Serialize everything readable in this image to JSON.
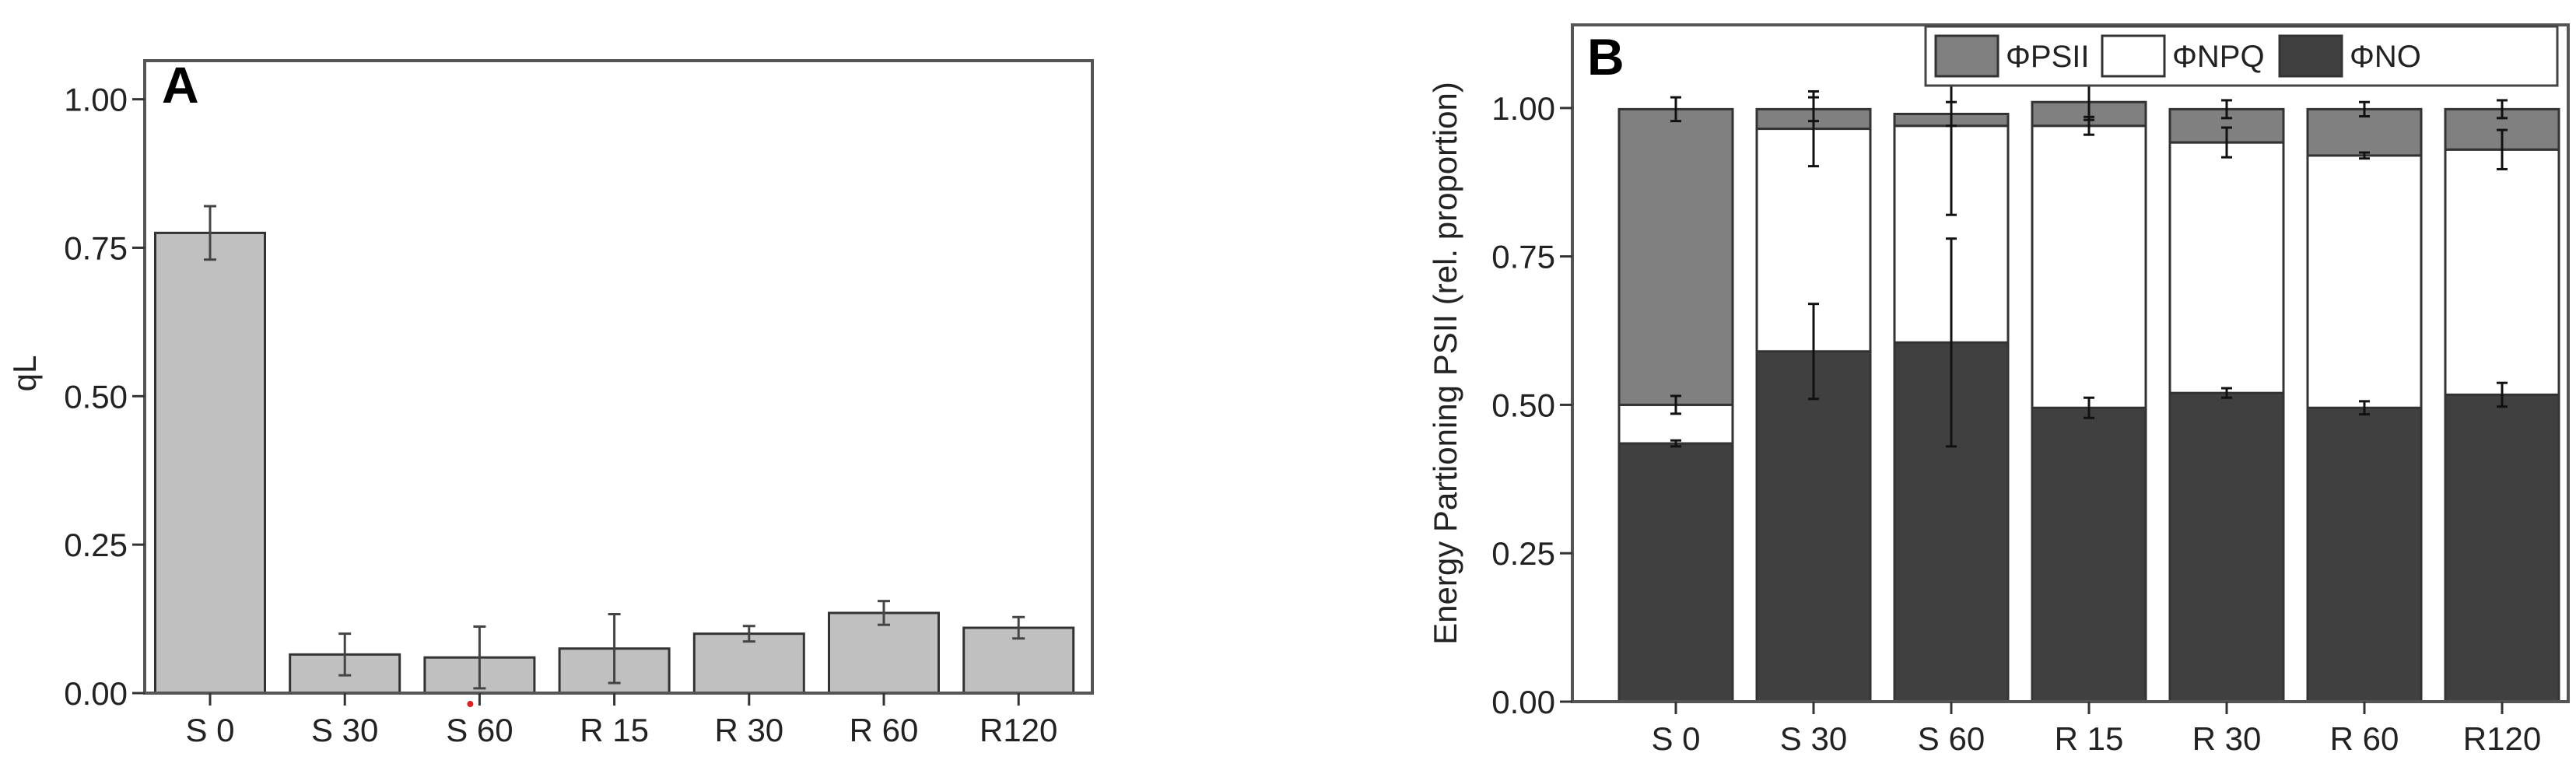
{
  "chart_data": [
    {
      "type": "bar",
      "panel_label": "A",
      "categories": [
        "S 0",
        "S 30",
        "S 60",
        "R 15",
        "R 30",
        "R 60",
        "R120"
      ],
      "values": [
        0.775,
        0.065,
        0.06,
        0.075,
        0.1,
        0.135,
        0.11
      ],
      "errors": [
        0.045,
        0.035,
        0.052,
        0.058,
        0.013,
        0.02,
        0.018
      ],
      "xlabel": "",
      "ylabel": "qL",
      "ylim": [
        0,
        1.065
      ],
      "yticks": [
        "0.00",
        "0.25",
        "0.50",
        "0.75",
        "1.00"
      ],
      "ytick_values": [
        0,
        0.25,
        0.5,
        0.75,
        1.0
      ],
      "grid": false,
      "colors": {
        "bar": "#c0c0c0",
        "edge": "#333333",
        "marker": "#e02020"
      }
    },
    {
      "type": "bar",
      "stacked": true,
      "panel_label": "B",
      "categories": [
        "S 0",
        "S 30",
        "S 60",
        "R 15",
        "R 30",
        "R 60",
        "R120"
      ],
      "series": [
        {
          "name": "ΦNO",
          "color": "#404040",
          "values": [
            0.435,
            0.59,
            0.605,
            0.495,
            0.52,
            0.495,
            0.517
          ],
          "errors": [
            0.005,
            0.08,
            0.175,
            0.017,
            0.008,
            0.011,
            0.02
          ]
        },
        {
          "name": "ΦNPQ",
          "color": "#ffffff",
          "values": [
            0.065,
            0.375,
            0.365,
            0.475,
            0.422,
            0.425,
            0.413
          ],
          "errors": [
            0.015,
            0.063,
            0.15,
            0.015,
            0.025,
            0.005,
            0.033
          ]
        },
        {
          "name": "ΦPSII",
          "color": "#808080",
          "values": [
            0.498,
            0.033,
            0.02,
            0.04,
            0.056,
            0.078,
            0.068
          ],
          "errors": [
            0.02,
            0.02,
            0.02,
            0.03,
            0.015,
            0.012,
            0.015
          ]
        }
      ],
      "legend_order": [
        "ΦPSII",
        "ΦNPQ",
        "ΦNO"
      ],
      "legend_position": "top-right",
      "xlabel": "",
      "ylabel": "Energy Partioning PSII (rel. proportion)",
      "ylim": [
        0,
        1.14
      ],
      "yticks": [
        "0.00",
        "0.25",
        "0.50",
        "0.75",
        "1.00"
      ],
      "ytick_values": [
        0,
        0.25,
        0.5,
        0.75,
        1.0
      ],
      "grid": false
    }
  ]
}
